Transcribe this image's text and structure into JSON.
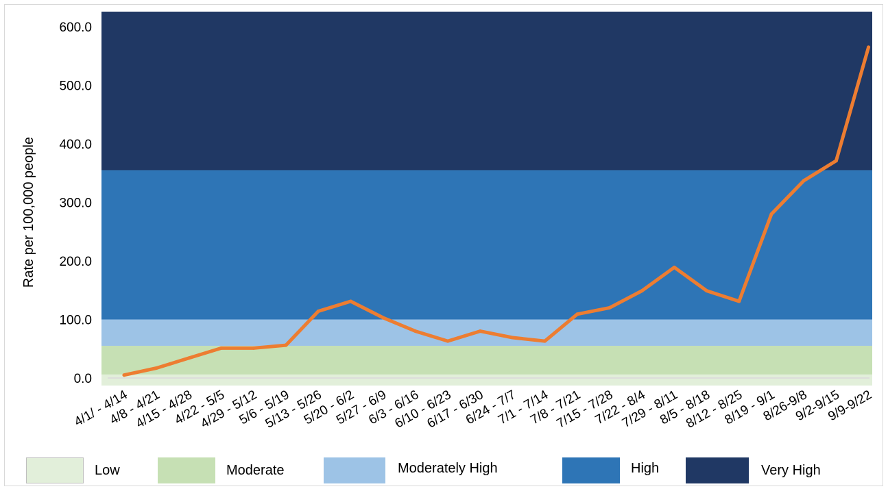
{
  "chart_data": {
    "type": "line",
    "ylabel": "Rate per 100,000 people",
    "xlabel": "",
    "ylim": [
      0,
      600
    ],
    "yticks": [
      "0.0",
      "100.0",
      "200.0",
      "300.0",
      "400.0",
      "500.0",
      "600.0"
    ],
    "categories": [
      "4/1/ - 4/14",
      "4/8 - 4/21",
      "4/15 - 4/28",
      "4/22 - 5/5",
      "4/29 - 5/12",
      "5/6 - 5/19",
      "5/13 - 5/26",
      "5/20 - 6/2",
      "5/27 - 6/9",
      "6/3 - 6/16",
      "6/10 - 6/23",
      "6/17 - 6/30",
      "6/24 - 7/7",
      "7/1 - 7/14",
      "7/8 - 7/21",
      "7/15 - 7/28",
      "7/22 - 8/4",
      "7/29 - 8/11",
      "8/5 - 8/18",
      "8/12 - 8/25",
      "8/19 - 9/1",
      "8/26-9/8",
      "9/2-9/15",
      "9/9-9/22"
    ],
    "series": [
      {
        "values": [
          5,
          17,
          34,
          51,
          51,
          56,
          114,
          131,
          103,
          80,
          63,
          80,
          69,
          63,
          109,
          120,
          149,
          189,
          149,
          131,
          280,
          337,
          371,
          565
        ],
        "color": "#ED7D31"
      }
    ],
    "bands": [
      {
        "name": "Low",
        "from": 0,
        "to": 6,
        "color": "#E2EFDA"
      },
      {
        "name": "Moderate",
        "from": 6,
        "to": 55,
        "color": "#C6E0B4"
      },
      {
        "name": "Moderately High",
        "from": 55,
        "to": 100,
        "color": "#9DC3E6"
      },
      {
        "name": "High",
        "from": 100,
        "to": 355,
        "color": "#2E75B6"
      },
      {
        "name": "Very High",
        "from": 355,
        "to": 630,
        "color": "#203864"
      }
    ],
    "legend": [
      {
        "label": "Low",
        "color": "#E2EFDA"
      },
      {
        "label": "Moderate",
        "color": "#C6E0B4"
      },
      {
        "label": "Moderately High",
        "color": "#9DC3E6"
      },
      {
        "label": "High",
        "color": "#2E75B6"
      },
      {
        "label": "Very High",
        "color": "#203864"
      }
    ],
    "grid": false,
    "legend_position": "bottom"
  }
}
